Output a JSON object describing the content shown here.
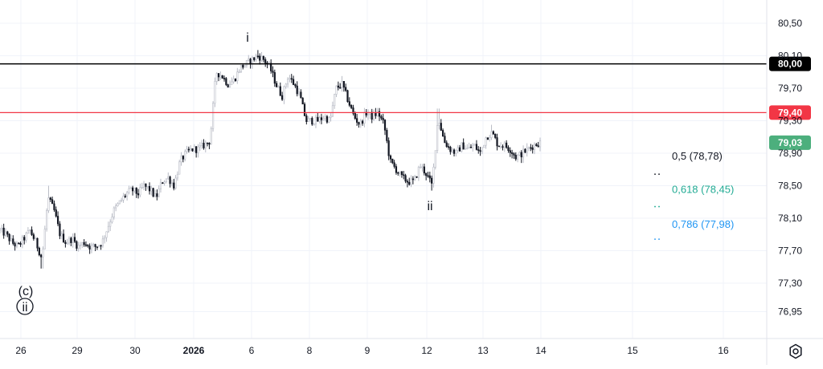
{
  "chart_data": {
    "type": "candlestick",
    "y_axis_ticks": [
      "80,50",
      "80,10",
      "79,70",
      "79,30",
      "78,90",
      "78,50",
      "78,10",
      "77,70",
      "77,30",
      "76,95"
    ],
    "y_axis_tick_values": [
      80.5,
      80.1,
      79.7,
      79.3,
      78.9,
      78.5,
      78.1,
      77.7,
      77.3,
      76.95
    ],
    "ylim": [
      76.8,
      80.75
    ],
    "x_axis_ticks": [
      "26",
      "29",
      "30",
      "2026",
      "6",
      "8",
      "9",
      "12",
      "13",
      "14",
      "15",
      "16"
    ],
    "price_lines": [
      {
        "value": 80.0,
        "label": "80,00",
        "color": "#000000"
      },
      {
        "value": 79.4,
        "label": "79,40",
        "color": "#f23645"
      }
    ],
    "current_price": {
      "value": 79.03,
      "label": "79,03",
      "color": "#4caf7d"
    },
    "fib_levels": [
      {
        "label": "0,5 (78,78)",
        "ratio": 0.5,
        "value": 78.78,
        "color": "#131722"
      },
      {
        "label": "0,618 (78,45)",
        "ratio": 0.618,
        "value": 78.45,
        "color": "#22ab94"
      },
      {
        "label": "0,786 (77,98)",
        "ratio": 0.786,
        "value": 77.98,
        "color": "#2196f3"
      }
    ],
    "wave_labels": [
      {
        "text": "i",
        "near_value": 80.17,
        "position": "above"
      },
      {
        "text": "ii",
        "near_value": 78.44,
        "position": "below"
      },
      {
        "text": "(c)",
        "near_value": 77.55,
        "position": "below"
      },
      {
        "text": "ii",
        "near_value": 77.55,
        "position": "below",
        "circled": true
      }
    ],
    "series_anchor_values": [
      77.95,
      77.9,
      77.8,
      77.75,
      77.85,
      77.95,
      77.8,
      77.6,
      78.35,
      78.2,
      77.9,
      77.8,
      77.85,
      77.75,
      77.8,
      77.75,
      77.75,
      77.8,
      78.0,
      78.2,
      78.3,
      78.4,
      78.45,
      78.4,
      78.5,
      78.45,
      78.35,
      78.55,
      78.6,
      78.5,
      78.8,
      78.9,
      78.95,
      78.95,
      79.0,
      79.05,
      79.9,
      79.85,
      79.75,
      79.8,
      79.95,
      80.0,
      80.05,
      80.1,
      80.05,
      79.95,
      79.75,
      79.6,
      79.85,
      79.75,
      79.6,
      79.3,
      79.3,
      79.3,
      79.35,
      79.3,
      79.7,
      79.75,
      79.55,
      79.35,
      79.25,
      79.4,
      79.35,
      79.4,
      79.25,
      78.8,
      78.7,
      78.6,
      78.55,
      78.55,
      78.75,
      78.65,
      78.5,
      79.35,
      79.05,
      78.95,
      78.9,
      79.0,
      78.95,
      79.0,
      78.9,
      79.1,
      79.15,
      79.0,
      79.0,
      78.95,
      78.85,
      78.9,
      78.95,
      79.0,
      79.03
    ],
    "series_anchor_highs": [
      null,
      null,
      null,
      null,
      null,
      null,
      null,
      null,
      78.5,
      null,
      null,
      null,
      null,
      null,
      null,
      null,
      null,
      null,
      null,
      null,
      null,
      null,
      null,
      null,
      null,
      null,
      null,
      null,
      null,
      null,
      null,
      null,
      null,
      null,
      null,
      null,
      null,
      null,
      null,
      null,
      null,
      null,
      null,
      80.17,
      null,
      null,
      null,
      null,
      null,
      null,
      null,
      null,
      null,
      null,
      null,
      null,
      null,
      79.85,
      null,
      null,
      null,
      null,
      null,
      79.45,
      null,
      null,
      null,
      null,
      null,
      null,
      null,
      null,
      null,
      79.45,
      null,
      null,
      null,
      null,
      null,
      null,
      null,
      null,
      79.25,
      null,
      null,
      null,
      null,
      null,
      null,
      null,
      null
    ],
    "series_anchor_lows": [
      null,
      null,
      null,
      null,
      null,
      null,
      null,
      77.48,
      null,
      null,
      null,
      null,
      null,
      null,
      null,
      null,
      null,
      null,
      null,
      null,
      null,
      null,
      null,
      null,
      null,
      null,
      null,
      null,
      null,
      null,
      null,
      null,
      null,
      null,
      null,
      null,
      null,
      null,
      null,
      null,
      null,
      null,
      null,
      null,
      null,
      null,
      null,
      null,
      null,
      null,
      null,
      null,
      null,
      null,
      null,
      null,
      null,
      null,
      null,
      null,
      null,
      null,
      null,
      null,
      null,
      null,
      null,
      null,
      78.48,
      null,
      null,
      null,
      78.44,
      null,
      null,
      null,
      null,
      null,
      null,
      null,
      null,
      null,
      null,
      null,
      null,
      null,
      null,
      78.78,
      null,
      null,
      null
    ],
    "grid": true
  },
  "icons": {
    "settings": "settings-gear-icon"
  }
}
